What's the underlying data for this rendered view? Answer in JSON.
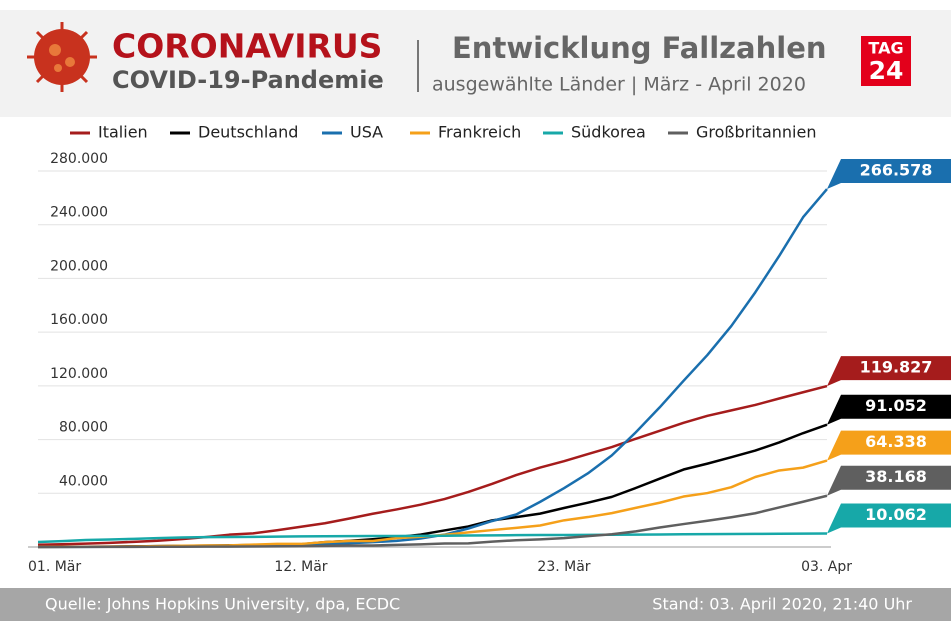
{
  "header": {
    "title": "CORONAVIRUS",
    "subtitle": "COVID-19-Pandemie",
    "heading": "Entwicklung Fallzahlen",
    "subheading": "ausgewählte Länder | März - April 2020",
    "logo_top": "TAG",
    "logo_bottom": "24"
  },
  "footer": {
    "source": "Quelle: Johns Hopkins University, dpa, ECDC",
    "date": "Stand: 03. April 2020, 21:40 Uhr"
  },
  "chart_data": {
    "type": "line",
    "categories": [
      "01. Mär",
      null,
      null,
      null,
      null,
      null,
      null,
      null,
      null,
      null,
      null,
      "12. Mär",
      null,
      null,
      null,
      null,
      null,
      null,
      null,
      null,
      null,
      null,
      "23. Mär",
      null,
      null,
      null,
      null,
      null,
      null,
      null,
      null,
      null,
      null,
      "03. Apr"
    ],
    "ylim": [
      0,
      280000
    ],
    "yticks": [
      {
        "value": 40000,
        "label": "40.000"
      },
      {
        "value": 80000,
        "label": "80.000"
      },
      {
        "value": 120000,
        "label": "120.000"
      },
      {
        "value": 160000,
        "label": "160.000"
      },
      {
        "value": 200000,
        "label": "200.000"
      },
      {
        "value": 240000,
        "label": "240.000"
      },
      {
        "value": 280000,
        "label": "280.000"
      }
    ],
    "grid": true,
    "series": [
      {
        "name": "Italien",
        "color": "#a51c1c",
        "values": [
          1694,
          2036,
          2502,
          3089,
          3858,
          4636,
          5883,
          7375,
          9172,
          10149,
          12462,
          15113,
          17660,
          21157,
          24747,
          27980,
          31506,
          35713,
          41035,
          47021,
          53578,
          59138,
          63927,
          69176,
          74386,
          80589,
          86498,
          92472,
          97689,
          101739,
          105792,
          110574,
          115242,
          119827
        ],
        "value_labels": [
          null,
          null,
          null,
          null,
          null,
          null,
          null,
          null,
          null,
          null,
          null,
          null,
          null,
          null,
          null,
          null,
          null,
          null,
          null,
          null,
          null,
          null,
          null,
          null,
          null,
          null,
          null,
          null,
          null,
          null,
          null,
          null,
          null,
          "119.827"
        ]
      },
      {
        "name": "Deutschland",
        "color": "#000000",
        "values": [
          130,
          159,
          196,
          262,
          482,
          670,
          799,
          1040,
          1176,
          1457,
          1908,
          2078,
          3675,
          4585,
          5795,
          7272,
          9257,
          12327,
          15320,
          19848,
          22213,
          24873,
          29056,
          32986,
          37323,
          43938,
          50871,
          57695,
          62095,
          66885,
          71808,
          77872,
          84794,
          91052
        ],
        "value_labels": [
          null,
          null,
          null,
          null,
          null,
          null,
          null,
          null,
          null,
          null,
          null,
          null,
          null,
          null,
          null,
          null,
          null,
          null,
          null,
          null,
          null,
          null,
          null,
          null,
          null,
          null,
          null,
          null,
          null,
          null,
          null,
          null,
          null,
          "91.052"
        ]
      },
      {
        "name": "USA",
        "color": "#1a6fae",
        "values": [
          75,
          100,
          124,
          158,
          221,
          319,
          435,
          541,
          704,
          994,
          1301,
          1630,
          2183,
          2770,
          3613,
          4596,
          6344,
          9197,
          13779,
          19367,
          24192,
          33592,
          43781,
          54856,
          68211,
          85356,
          103942,
          123750,
          143025,
          164620,
          189618,
          216722,
          245573,
          266578
        ],
        "value_labels": [
          null,
          null,
          null,
          null,
          null,
          null,
          null,
          null,
          null,
          null,
          null,
          null,
          null,
          null,
          null,
          null,
          null,
          null,
          null,
          null,
          null,
          null,
          null,
          null,
          null,
          null,
          null,
          null,
          null,
          null,
          null,
          null,
          null,
          "266.578"
        ]
      },
      {
        "name": "Frankreich",
        "color": "#f5a01a",
        "values": [
          130,
          191,
          204,
          285,
          377,
          653,
          949,
          1126,
          1209,
          1784,
          2281,
          2281,
          3661,
          4469,
          4499,
          6633,
          7652,
          9043,
          10871,
          12612,
          14282,
          16018,
          19856,
          22304,
          25233,
          29155,
          32964,
          37575,
          40174,
          44550,
          52128,
          56989,
          59105,
          64338
        ],
        "value_labels": [
          null,
          null,
          null,
          null,
          null,
          null,
          null,
          null,
          null,
          null,
          null,
          null,
          null,
          null,
          null,
          null,
          null,
          null,
          null,
          null,
          null,
          null,
          null,
          null,
          null,
          null,
          null,
          null,
          null,
          null,
          null,
          null,
          null,
          "64.338"
        ]
      },
      {
        "name": "Südkorea",
        "color": "#17a8a8",
        "values": [
          3736,
          4335,
          5186,
          5621,
          6088,
          6593,
          7041,
          7314,
          7478,
          7513,
          7755,
          7869,
          7979,
          8086,
          8162,
          8236,
          8320,
          8413,
          8565,
          8652,
          8799,
          8897,
          8961,
          9037,
          9137,
          9241,
          9332,
          9478,
          9583,
          9661,
          9786,
          9887,
          9976,
          10062
        ],
        "value_labels": [
          null,
          null,
          null,
          null,
          null,
          null,
          null,
          null,
          null,
          null,
          null,
          null,
          null,
          null,
          null,
          null,
          null,
          null,
          null,
          null,
          null,
          null,
          null,
          null,
          null,
          null,
          null,
          null,
          null,
          null,
          null,
          null,
          null,
          "10.062"
        ]
      },
      {
        "name": "Großbritannien",
        "color": "#5f5f5f",
        "values": [
          36,
          40,
          51,
          86,
          116,
          164,
          209,
          278,
          321,
          383,
          456,
          590,
          798,
          1140,
          1140,
          1543,
          1950,
          2626,
          2689,
          3983,
          5018,
          5683,
          6650,
          8077,
          9529,
          11658,
          14543,
          17089,
          19522,
          22141,
          25150,
          29474,
          33718,
          38168
        ],
        "value_labels": [
          null,
          null,
          null,
          null,
          null,
          null,
          null,
          null,
          null,
          null,
          null,
          null,
          null,
          null,
          null,
          null,
          null,
          null,
          null,
          null,
          null,
          null,
          null,
          null,
          null,
          null,
          null,
          null,
          null,
          null,
          null,
          null,
          null,
          "38.168"
        ]
      }
    ]
  }
}
